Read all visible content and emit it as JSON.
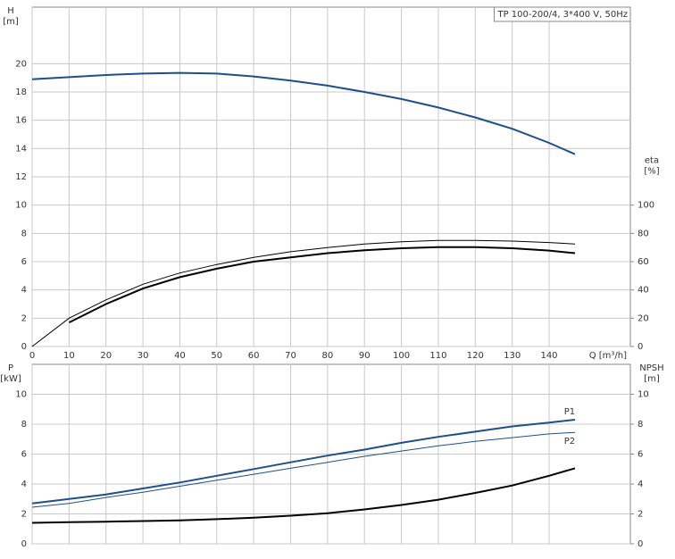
{
  "chart_data": [
    {
      "type": "line",
      "title": "TP 100-200/4, 3*400 V, 50Hz",
      "ylabel": "H",
      "yunit": "[m]",
      "y2label": "eta",
      "y2unit": "[%]",
      "xlabel": "Q [m³/h]",
      "x": [
        0,
        10,
        20,
        30,
        40,
        50,
        60,
        70,
        80,
        90,
        100,
        110,
        120,
        130,
        140,
        147
      ],
      "xlim": [
        0,
        162
      ],
      "xticks": [
        0,
        10,
        20,
        30,
        40,
        50,
        60,
        70,
        80,
        90,
        100,
        110,
        120,
        130,
        140
      ],
      "ylim": [
        0,
        24
      ],
      "yticks": [
        0,
        2,
        4,
        6,
        8,
        10,
        12,
        14,
        16,
        18,
        20
      ],
      "y2lim": [
        0,
        240
      ],
      "y2ticks": [
        0,
        20,
        40,
        60,
        80,
        100
      ],
      "grid": true,
      "show_xtick_labels": true,
      "series": [
        {
          "color": "#1c4f8c",
          "linewidth": 2,
          "values": [
            18.9,
            19.05,
            19.2,
            19.3,
            19.35,
            19.3,
            19.1,
            18.8,
            18.45,
            18.0,
            17.5,
            16.9,
            16.2,
            15.4,
            14.4,
            13.6
          ]
        },
        {
          "color": "#000000",
          "linewidth": 1,
          "axis": "y2",
          "values": [
            0,
            20,
            33,
            44,
            52,
            58,
            63,
            67,
            70,
            72.5,
            74,
            75,
            75,
            74.5,
            73.5,
            72.5
          ]
        },
        {
          "color": "#000000",
          "linewidth": 2,
          "axis": "y2",
          "values": [
            null,
            17,
            30,
            41,
            49,
            55,
            60,
            63,
            66,
            68,
            69.5,
            70.3,
            70.3,
            69.5,
            67.8,
            66
          ]
        }
      ]
    },
    {
      "type": "line",
      "ylabel": "P",
      "yunit": "[kW]",
      "y2label": "NPSH",
      "y2unit": "[m]",
      "x": [
        0,
        10,
        20,
        30,
        40,
        50,
        60,
        70,
        80,
        90,
        100,
        110,
        120,
        130,
        140,
        147
      ],
      "xlim": [
        0,
        162
      ],
      "xticks": [
        0,
        10,
        20,
        30,
        40,
        50,
        60,
        70,
        80,
        90,
        100,
        110,
        120,
        130,
        140
      ],
      "ylim": [
        0,
        12
      ],
      "yticks": [
        0,
        2,
        4,
        6,
        8,
        10
      ],
      "y2lim": [
        0,
        12
      ],
      "y2ticks": [
        0,
        2,
        4,
        6,
        8,
        10
      ],
      "grid": true,
      "show_xtick_labels": false,
      "series": [
        {
          "name": "P1",
          "color": "#1c4f8c",
          "linewidth": 2,
          "values": [
            2.7,
            3.0,
            3.3,
            3.7,
            4.1,
            4.55,
            5.0,
            5.45,
            5.9,
            6.3,
            6.75,
            7.15,
            7.5,
            7.85,
            8.1,
            8.3
          ]
        },
        {
          "name": "P2",
          "color": "#1c4f8c",
          "linewidth": 1,
          "values": [
            2.45,
            2.7,
            3.1,
            3.45,
            3.85,
            4.25,
            4.65,
            5.05,
            5.45,
            5.85,
            6.2,
            6.55,
            6.85,
            7.1,
            7.35,
            7.45
          ]
        },
        {
          "color": "#000000",
          "linewidth": 2,
          "axis": "y2",
          "values": [
            1.4,
            1.45,
            1.48,
            1.52,
            1.57,
            1.65,
            1.75,
            1.88,
            2.05,
            2.3,
            2.6,
            2.95,
            3.4,
            3.9,
            4.55,
            5.05
          ]
        }
      ]
    }
  ]
}
